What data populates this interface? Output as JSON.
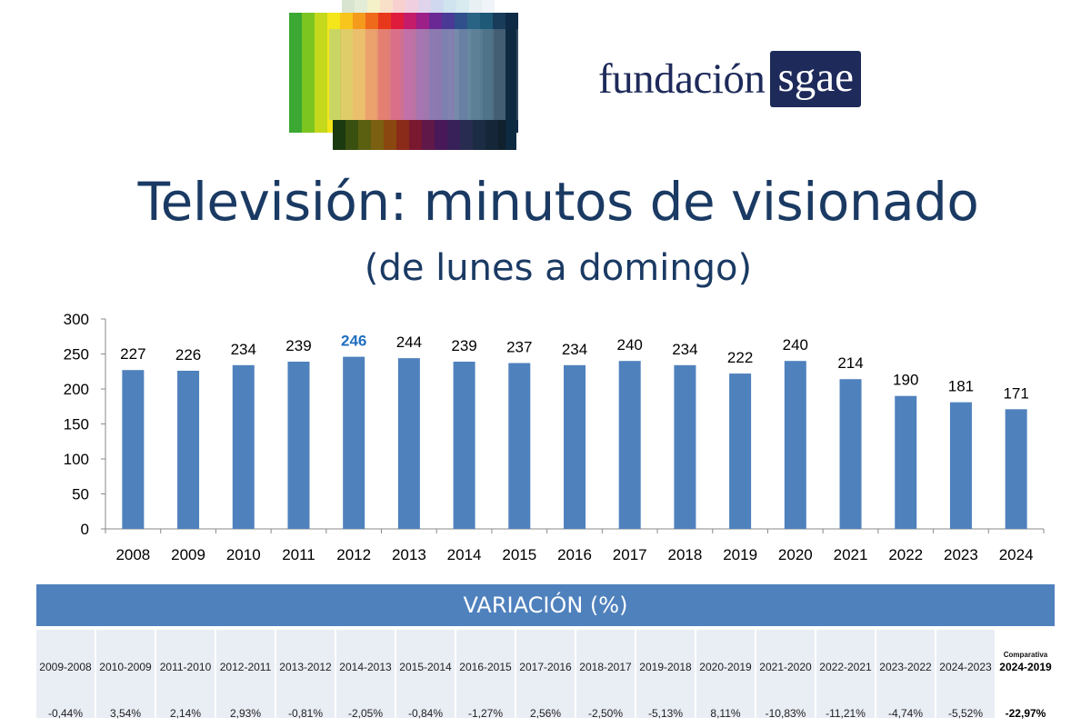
{
  "brand": {
    "word": "fundación",
    "box": "sgae"
  },
  "title": "Televisión: minutos de visionado",
  "subtitle": "(de lunes a domingo)",
  "colors": {
    "bar": "#4f81bd",
    "highlight_label": "#1f6fbf",
    "header": "#4f81bd",
    "title": "#1a3a63"
  },
  "chart_data": {
    "type": "bar",
    "categories": [
      "2008",
      "2009",
      "2010",
      "2011",
      "2012",
      "2013",
      "2014",
      "2015",
      "2016",
      "2017",
      "2018",
      "2019",
      "2020",
      "2021",
      "2022",
      "2023",
      "2024"
    ],
    "values": [
      227,
      226,
      234,
      239,
      246,
      244,
      239,
      237,
      234,
      240,
      234,
      222,
      240,
      214,
      190,
      181,
      171
    ],
    "highlight_index": 4,
    "ylim": [
      0,
      300
    ],
    "yticks": [
      0,
      50,
      100,
      150,
      200,
      250,
      300
    ],
    "grid": false,
    "legend": "none"
  },
  "variation": {
    "header": "VARIACIÓN (%)",
    "columns": [
      {
        "period": "2009-2008",
        "value": "-0,44%"
      },
      {
        "period": "2010-2009",
        "value": "3,54%"
      },
      {
        "period": "2011-2010",
        "value": "2,14%"
      },
      {
        "period": "2012-2011",
        "value": "2,93%"
      },
      {
        "period": "2013-2012",
        "value": "-0,81%"
      },
      {
        "period": "2014-2013",
        "value": "-2,05%"
      },
      {
        "period": "2015-2014",
        "value": "-0,84%"
      },
      {
        "period": "2016-2015",
        "value": "-1,27%"
      },
      {
        "period": "2017-2016",
        "value": "2,56%"
      },
      {
        "period": "2018-2017",
        "value": "-2,50%"
      },
      {
        "period": "2019-2018",
        "value": "-5,13%"
      },
      {
        "period": "2020-2019",
        "value": "8,11%"
      },
      {
        "period": "2021-2020",
        "value": "-10,83%"
      },
      {
        "period": "2022-2021",
        "value": "-11,21%"
      },
      {
        "period": "2023-2022",
        "value": "-4,74%"
      },
      {
        "period": "2024-2023",
        "value": "-5,52%"
      }
    ],
    "comparison": {
      "caption": "Comparativa",
      "period": "2024-2019",
      "value": "-22,97%"
    }
  }
}
